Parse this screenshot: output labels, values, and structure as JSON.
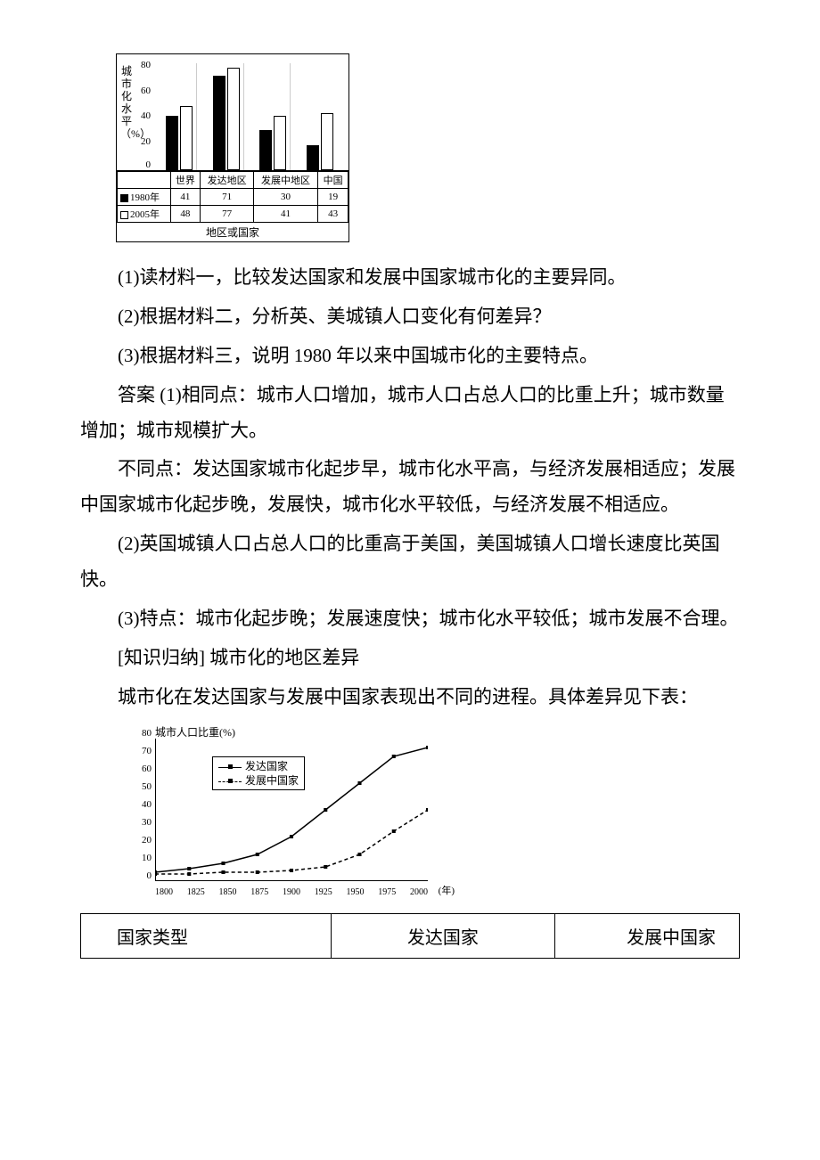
{
  "chart1": {
    "type": "bar",
    "y_label": "城市化水平（%）",
    "y_ticks": [
      0,
      20,
      40,
      60,
      80
    ],
    "ylim": [
      0,
      80
    ],
    "categories": [
      "世界",
      "发达地区",
      "发展中地区",
      "中国"
    ],
    "series": [
      {
        "name": "1980年",
        "color": "#000000",
        "values": [
          41,
          71,
          30,
          19
        ]
      },
      {
        "name": "2005年",
        "color": "#ffffff",
        "values": [
          48,
          77,
          41,
          43
        ]
      }
    ],
    "caption": "地区或国家",
    "background_color": "#ffffff",
    "border_color": "#000000"
  },
  "q1": "(1)读材料一，比较发达国家和发展中国家城市化的主要异同。",
  "q2": "(2)根据材料二，分析英、美城镇人口变化有何差异？",
  "q3": "(3)根据材料三，说明 1980 年以来中国城市化的主要特点。",
  "a_label": "答案",
  "a1a": " (1)相同点：城市人口增加，城市人口占总人口的比重上升；城市数量增加；城市规模扩大。",
  "a1b": "不同点：发达国家城市化起步早，城市化水平高，与经济发展相适应；发展中国家城市化起步晚，发展快，城市化水平较低，与经济发展不相适应。",
  "a2": "(2)英国城镇人口占总人口的比重高于美国，美国城镇人口增长速度比英国快。",
  "a3": "(3)特点：城市化起步晚；发展速度快；城市化水平较低；城市发展不合理。",
  "summary_title": "[知识归纳] 城市化的地区差异",
  "summary_text": "城市化在发达国家与发展中国家表现出不同的进程。具体差异见下表：",
  "chart2": {
    "type": "line",
    "title": "城市人口比重(%)",
    "y_ticks": [
      0,
      10,
      20,
      30,
      40,
      50,
      60,
      70,
      80
    ],
    "ylim": [
      0,
      80
    ],
    "x_ticks": [
      1800,
      1825,
      1850,
      1875,
      1900,
      1925,
      1950,
      1975,
      2000
    ],
    "x_axis_label": "(年)",
    "series": [
      {
        "name": "发达国家",
        "style": "solid",
        "color": "#000000",
        "marker": "square",
        "values": [
          5,
          7,
          10,
          15,
          25,
          40,
          55,
          70,
          75
        ]
      },
      {
        "name": "发展中国家",
        "style": "dashed",
        "color": "#000000",
        "marker": "square",
        "values": [
          4,
          4,
          5,
          5,
          6,
          8,
          15,
          28,
          40
        ]
      }
    ],
    "background_color": "#ffffff"
  },
  "table2": {
    "header": [
      "国家类型",
      "发达国家",
      "发展中国家"
    ],
    "col_widths_pct": [
      38,
      34,
      28
    ]
  }
}
